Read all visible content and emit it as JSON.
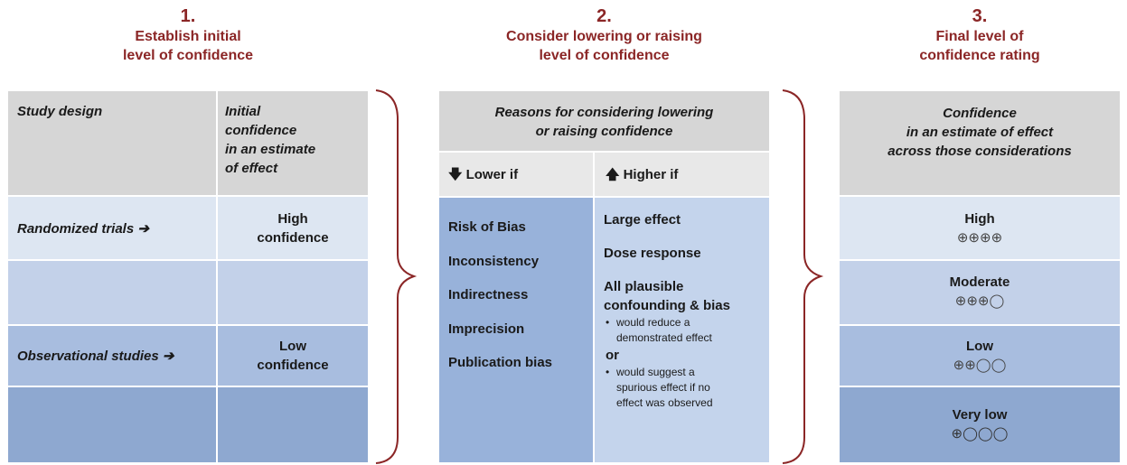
{
  "steps": [
    {
      "number": "1.",
      "title": [
        "Establish initial",
        "level of confidence"
      ]
    },
    {
      "number": "2.",
      "title": [
        "Consider lowering or raising",
        "level of confidence"
      ]
    },
    {
      "number": "3.",
      "title": [
        "Final level of",
        "confidence rating"
      ]
    }
  ],
  "initial": {
    "headers": [
      "Study design",
      [
        "Initial",
        "confidence",
        "in an estimate",
        "of effect"
      ]
    ],
    "rows": [
      {
        "design": "Randomized trials ➔",
        "confidence": [
          "High",
          "confidence"
        ]
      },
      {
        "design": "Observational studies ➔",
        "confidence": [
          "Low",
          "confidence"
        ]
      }
    ]
  },
  "reasons": {
    "header": [
      "Reasons for considering lowering",
      "or raising confidence"
    ],
    "lower_label": "🡇 Lower if",
    "higher_label": "🡅 Higher if",
    "lower": [
      "Risk of Bias",
      "Inconsistency",
      "Indirectness",
      "Imprecision",
      "Publication bias"
    ],
    "higher": [
      "Large effect",
      "Dose response",
      [
        "All plausible",
        "confounding & bias"
      ]
    ],
    "bullets": [
      [
        "would reduce a",
        "demonstrated effect"
      ],
      [
        "would suggest a",
        "spurious effect if no",
        "effect was observed"
      ]
    ],
    "or": "or"
  },
  "final": {
    "header": [
      "Confidence",
      "in an estimate of effect",
      "across those considerations"
    ],
    "ratings": [
      {
        "label": "High",
        "symbols": "⊕⊕⊕⊕"
      },
      {
        "label": "Moderate",
        "symbols": "⊕⊕⊕◯"
      },
      {
        "label": "Low",
        "symbols": "⊕⊕◯◯"
      },
      {
        "label": "Very low",
        "symbols": "⊕◯◯◯"
      }
    ]
  }
}
